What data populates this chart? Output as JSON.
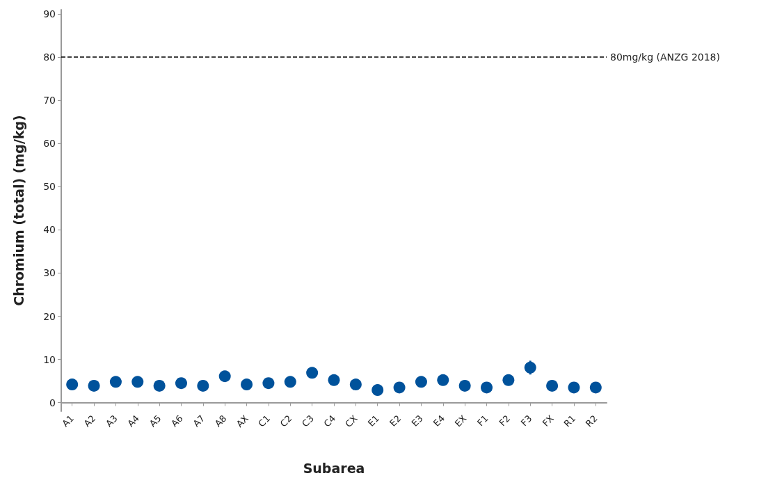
{
  "chart_data": {
    "type": "scatter",
    "xlabel": "Subarea",
    "ylabel": "Chromium (total) (mg/kg)",
    "categories": [
      "A1",
      "A2",
      "A3",
      "A4",
      "A5",
      "A6",
      "A7",
      "A8",
      "AX",
      "C1",
      "C2",
      "C3",
      "C4",
      "CX",
      "E1",
      "E2",
      "E3",
      "E4",
      "EX",
      "F1",
      "F2",
      "F3",
      "FX",
      "R1",
      "R2"
    ],
    "values": [
      4.2,
      3.9,
      4.8,
      4.8,
      3.9,
      4.5,
      3.9,
      6.1,
      4.2,
      4.5,
      4.8,
      6.9,
      5.2,
      4.2,
      2.9,
      3.5,
      4.8,
      5.2,
      3.9,
      3.5,
      5.2,
      8.1,
      3.9,
      3.5,
      3.5
    ],
    "errors": [
      null,
      null,
      null,
      null,
      null,
      null,
      null,
      null,
      null,
      null,
      null,
      null,
      null,
      null,
      null,
      null,
      null,
      1.2,
      null,
      null,
      null,
      1.6,
      null,
      null,
      null
    ],
    "color": "#00529b",
    "marker": "circle",
    "ylim": [
      -2,
      91
    ],
    "yticks": [
      0,
      10,
      20,
      30,
      40,
      50,
      60,
      70,
      80,
      90
    ],
    "grid": false,
    "ref_lines": [
      {
        "axis": "y",
        "value": 80,
        "label": "80mg/kg (ANZG 2018)",
        "color": "#000000",
        "line_style": "dashed"
      }
    ]
  }
}
